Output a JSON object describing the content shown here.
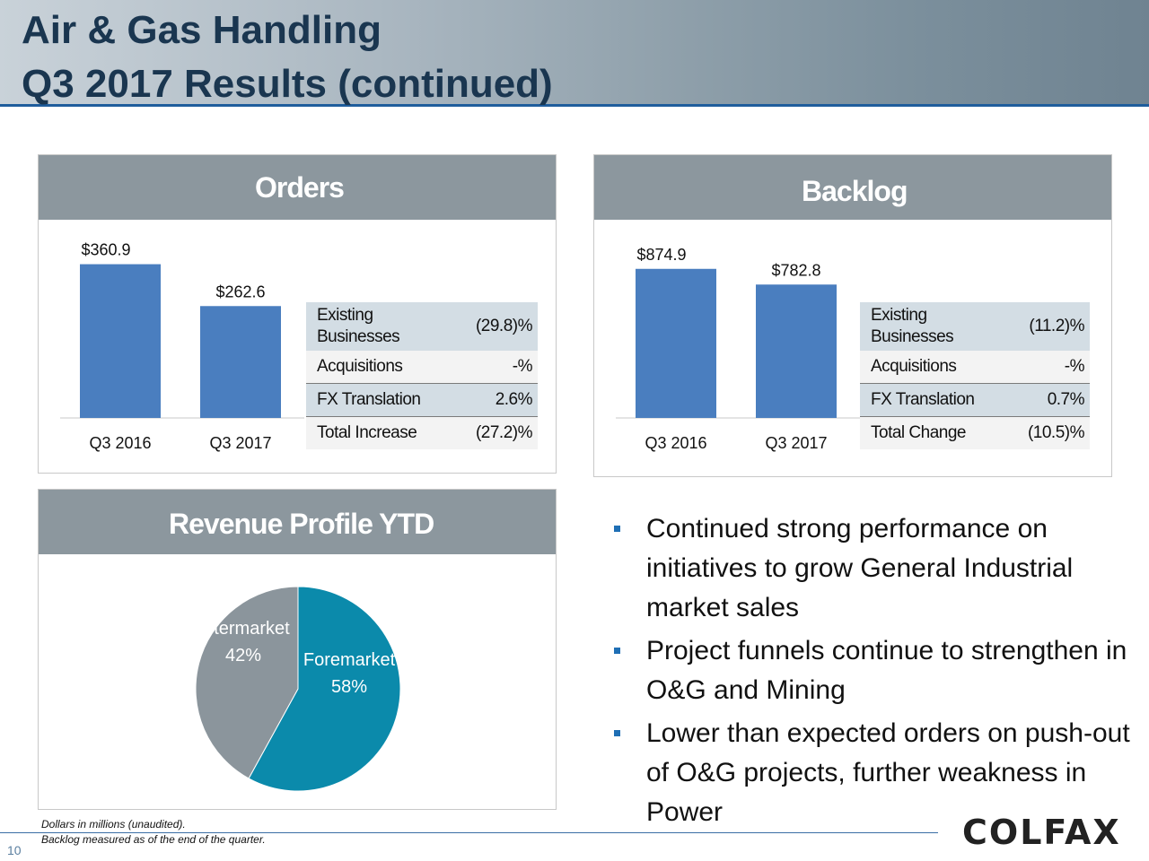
{
  "header": {
    "title_line1": "Air & Gas Handling",
    "title_line2": "Q3 2017 Results (continued)"
  },
  "orders": {
    "heading": "Orders",
    "bridge": [
      {
        "label_line1": "Existing",
        "label_line2": "Businesses",
        "value": "(29.8)%"
      },
      {
        "label_line1": "Acquisitions",
        "label_line2": "",
        "value": "-%"
      },
      {
        "label_line1": "FX Translation",
        "label_line2": "",
        "value": "2.6%"
      },
      {
        "label_line1": "Total Increase",
        "label_line2": "",
        "value": "(27.2)%"
      }
    ]
  },
  "backlog": {
    "heading": "Backlog",
    "bridge": [
      {
        "label_line1": "Existing",
        "label_line2": "Businesses",
        "value": "(11.2)%"
      },
      {
        "label_line1": "Acquisitions",
        "label_line2": "",
        "value": "-%"
      },
      {
        "label_line1": "FX Translation",
        "label_line2": "",
        "value": "0.7%"
      },
      {
        "label_line1": "Total Change",
        "label_line2": "",
        "value": "(10.5)%"
      }
    ]
  },
  "revenue": {
    "heading": "Revenue Profile YTD"
  },
  "bullets": [
    "Continued strong performance on initiatives to grow General Industrial market sales",
    "Project funnels continue to strengthen in O&G and Mining",
    "Lower than expected orders on push-out of O&G projects, further weakness in Power"
  ],
  "footer": {
    "note1": "Dollars in millions (unaudited).",
    "note2": "Backlog measured as of the end of the quarter.",
    "page_number": "10",
    "logo_text": "COLFAX"
  },
  "colors": {
    "bar": "#4a7ebf",
    "foremarket": "#0b8aab",
    "aftermarket": "#8b959c",
    "panel_header": "#8c979e"
  },
  "chart_data": [
    {
      "type": "bar",
      "title": "Orders",
      "categories": [
        "Q3 2016",
        "Q3 2017"
      ],
      "values": [
        360.9,
        262.6
      ],
      "data_labels": [
        "$360.9",
        "$262.6"
      ],
      "ylim": [
        0,
        400
      ],
      "grid": false
    },
    {
      "type": "bar",
      "title": "Backlog",
      "categories": [
        "Q3 2016",
        "Q3 2017"
      ],
      "values": [
        874.9,
        782.8
      ],
      "data_labels": [
        "$874.9",
        "$782.8"
      ],
      "ylim": [
        0,
        1000
      ],
      "grid": false
    },
    {
      "type": "pie",
      "title": "Revenue Profile YTD",
      "slices": [
        {
          "label": "Foremarket",
          "value": 58,
          "value_label": "58%"
        },
        {
          "label": "Aftermarket",
          "value": 42,
          "value_label": "42%"
        }
      ]
    }
  ]
}
